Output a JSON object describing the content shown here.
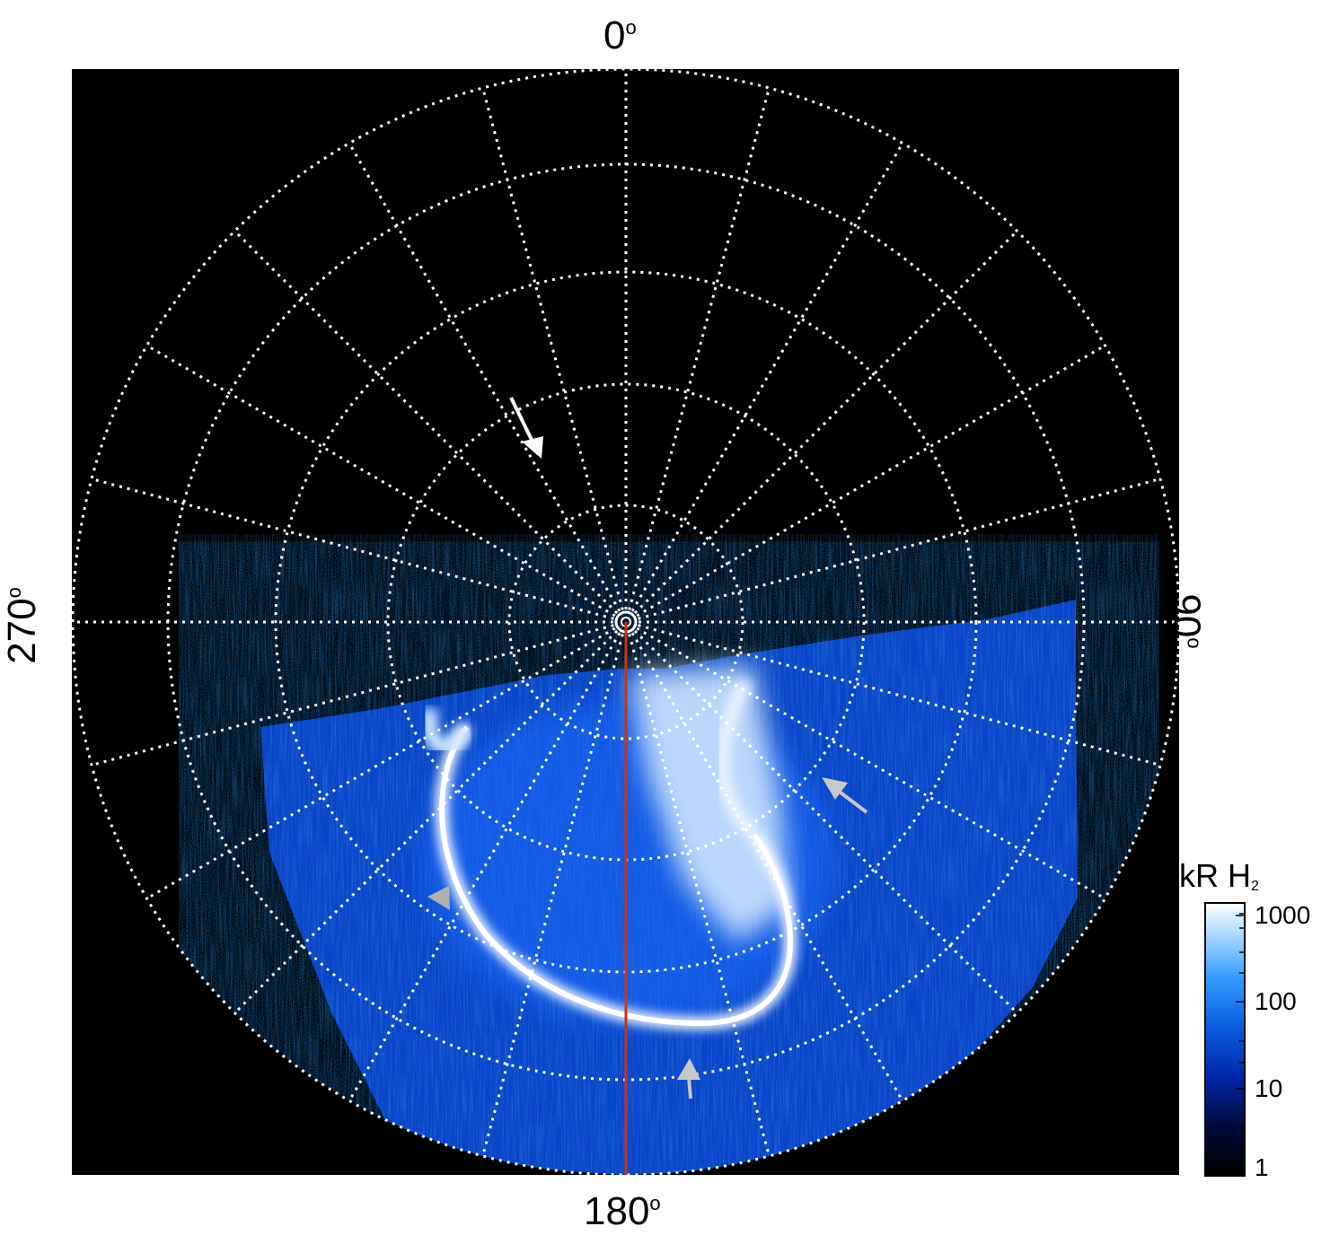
{
  "longitude_labels": {
    "top": "0",
    "right": "90",
    "bottom": "180",
    "left": "270",
    "degree_symbol": "o"
  },
  "colorbar": {
    "title": "kR H",
    "title_subscript": "2",
    "ticks": [
      "1",
      "10",
      "100",
      "1000"
    ],
    "colors": [
      "#000000",
      "#000a3a",
      "#0026a8",
      "#0a5fe0",
      "#2f9bff",
      "#a9d7ff",
      "#ffffff"
    ]
  },
  "colors": {
    "background": "#000000",
    "grid": "#ffffff",
    "meridian_line": "#cc3311",
    "aurora_dim": "#0b3ad0",
    "aurora_bright": "#ffffff",
    "arrow_white": "#ffffff",
    "arrow_grey": "#bfbfbf"
  }
}
